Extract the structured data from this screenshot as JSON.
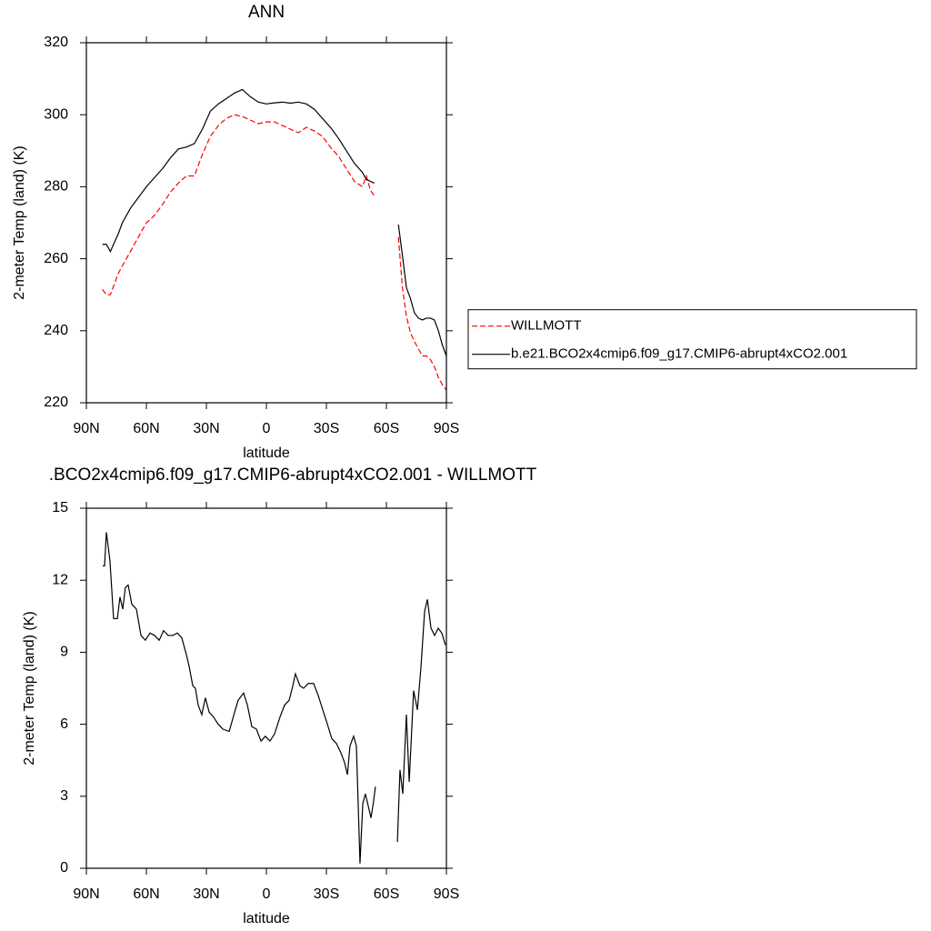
{
  "chart_data": [
    {
      "type": "line",
      "title": "ANN",
      "x_label": "latitude",
      "y_label": "2-meter Temp (land) (K)",
      "x": [
        82,
        80,
        78,
        76,
        74,
        72,
        68,
        64,
        60,
        56,
        52,
        48,
        44,
        40,
        36,
        32,
        28,
        24,
        20,
        16,
        12,
        8,
        4,
        0,
        -4,
        -8,
        -12,
        -16,
        -20,
        -24,
        -28,
        -32,
        -36,
        -40,
        -44,
        -48,
        -50,
        -52,
        -54,
        null,
        -66,
        -68,
        -70,
        -72,
        -74,
        -76,
        -78,
        -80,
        -82,
        -84,
        -86,
        -88,
        -90
      ],
      "series": [
        {
          "name": "WILLMOTT",
          "color": "#ff0000",
          "style": "dashed",
          "values": [
            251.5,
            250,
            250,
            253,
            256,
            258,
            262,
            266,
            270,
            272,
            275,
            278.5,
            281,
            283,
            283,
            289,
            294,
            297,
            299,
            300,
            299.5,
            298.5,
            297.5,
            298,
            298,
            297,
            296,
            295,
            296.5,
            295.5,
            294,
            291,
            288.5,
            285,
            281.5,
            280,
            283,
            279,
            277.5,
            null,
            266,
            252,
            244,
            239.5,
            237,
            235,
            233,
            233,
            232,
            230,
            227,
            225,
            223.5
          ]
        },
        {
          "name": "b.e21.BCO2x4cmip6.f09_g17.CMIP6-abrupt4xCO2.001",
          "color": "#000000",
          "style": "solid",
          "values": [
            264,
            264,
            262,
            264.5,
            267,
            270,
            274,
            277,
            280,
            282.5,
            285,
            288,
            290.5,
            291,
            292,
            296,
            301,
            303,
            304.5,
            306,
            307,
            305,
            303.5,
            303,
            303.3,
            303.5,
            303.2,
            303.5,
            303,
            301.5,
            299,
            296.5,
            293.5,
            290,
            286.5,
            284,
            282,
            281.5,
            281,
            null,
            269.5,
            261,
            252,
            249,
            245,
            243.5,
            243,
            243.5,
            243.5,
            243,
            240,
            236,
            233
          ]
        }
      ],
      "xlim": [
        90,
        -90
      ],
      "xticks": [
        {
          "value": 90,
          "label": "90N"
        },
        {
          "value": 60,
          "label": "60N"
        },
        {
          "value": 30,
          "label": "30N"
        },
        0,
        {
          "value": -30,
          "label": "30S"
        },
        {
          "value": -60,
          "label": "60S"
        },
        {
          "value": -90,
          "label": "90S"
        }
      ],
      "ylim": [
        220,
        320
      ],
      "yticks": [
        220,
        240,
        260,
        280,
        300,
        320
      ],
      "grid": false,
      "legend": "right"
    },
    {
      "type": "line",
      "title": ".BCO2x4cmip6.f09_g17.CMIP6-abrupt4xCO2.001 - WILLMOTT",
      "x_label": "latitude",
      "y_label": "2-meter Temp (land) (K)",
      "x": [
        81.8,
        80.9,
        80.0,
        78.2,
        76.4,
        74.5,
        73.2,
        71.8,
        70.5,
        69.1,
        67.3,
        65.0,
        62.7,
        60.5,
        58.2,
        55.9,
        53.6,
        51.4,
        49.1,
        46.8,
        44.5,
        42.3,
        40.0,
        38.6,
        36.8,
        35.5,
        34.1,
        32.3,
        30.5,
        28.6,
        26.4,
        24.1,
        21.8,
        18.6,
        15.9,
        14.1,
        11.4,
        9.5,
        7.3,
        5.0,
        2.7,
        0.5,
        -1.8,
        -4.1,
        -6.8,
        -9.1,
        -11.4,
        -13.2,
        -14.5,
        -16.8,
        -18.6,
        -20.9,
        -23.6,
        -25.9,
        -28.2,
        -30.5,
        -32.7,
        -35.0,
        -37.3,
        -39.1,
        -40.5,
        -41.8,
        -43.6,
        -45.0,
        -46.8,
        -48.2,
        -49.5,
        -50.9,
        -52.3,
        -53.6,
        -54.5,
        null,
        -65.5,
        -66.8,
        -68.2,
        -70.0,
        -71.4,
        -73.6,
        -75.5,
        -77.3,
        -79.1,
        -80.5,
        -82.3,
        -84.1,
        -85.9,
        -87.7,
        -89.5
      ],
      "series": [
        {
          "color": "#000000",
          "style": "solid",
          "values": [
            12.6,
            12.6,
            14.0,
            12.8,
            10.4,
            10.4,
            11.3,
            10.8,
            11.7,
            11.8,
            11.0,
            10.8,
            9.7,
            9.5,
            9.8,
            9.7,
            9.5,
            9.9,
            9.7,
            9.7,
            9.8,
            9.6,
            8.9,
            8.4,
            7.6,
            7.5,
            6.8,
            6.4,
            7.1,
            6.5,
            6.3,
            6.0,
            5.8,
            5.7,
            6.5,
            7.0,
            7.3,
            6.8,
            5.9,
            5.8,
            5.3,
            5.5,
            5.3,
            5.6,
            6.3,
            6.8,
            7.0,
            7.6,
            8.1,
            7.6,
            7.5,
            7.7,
            7.7,
            7.2,
            6.6,
            6.0,
            5.4,
            5.2,
            4.8,
            4.4,
            3.9,
            5.1,
            5.5,
            5.1,
            0.2,
            2.7,
            3.1,
            2.6,
            2.1,
            2.8,
            3.4,
            null,
            1.1,
            4.1,
            3.1,
            6.4,
            3.6,
            7.4,
            6.6,
            8.4,
            10.7,
            11.2,
            10.0,
            9.7,
            10.0,
            9.8,
            9.3
          ]
        }
      ],
      "xlim": [
        90,
        -90
      ],
      "xticks": [
        {
          "value": 90,
          "label": "90N"
        },
        {
          "value": 60,
          "label": "60N"
        },
        {
          "value": 30,
          "label": "30N"
        },
        0,
        {
          "value": -30,
          "label": "30S"
        },
        {
          "value": -60,
          "label": "60S"
        },
        {
          "value": -90,
          "label": "90S"
        }
      ],
      "ylim": [
        0,
        15
      ],
      "yticks": [
        0,
        3,
        6,
        9,
        12,
        15
      ],
      "grid": false
    }
  ]
}
